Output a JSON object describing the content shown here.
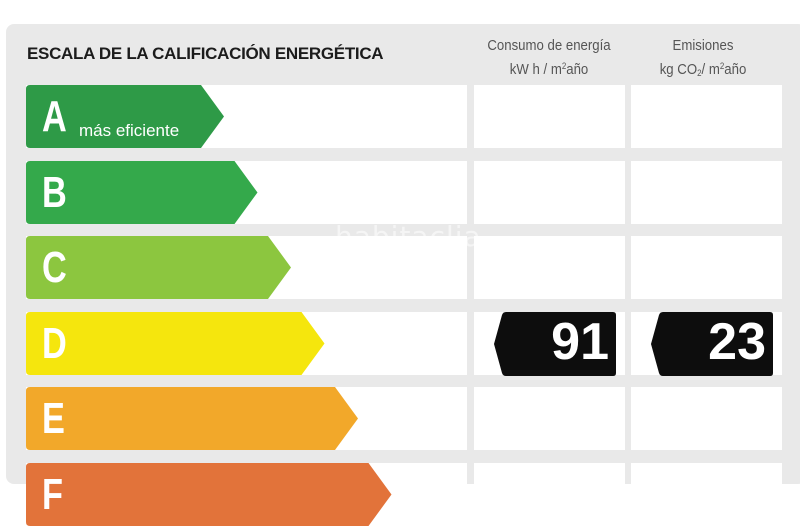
{
  "header": {
    "title": "ESCALA DE LA CALIFICACIÓN ENERGÉTICA",
    "consumption": {
      "line1": "Consumo de energía",
      "line2_prefix": "kW h / m",
      "line2_sup": "2",
      "line2_suffix": "año"
    },
    "emissions": {
      "line1": "Emisiones",
      "line2_prefix": "kg CO",
      "line2_sub": "2",
      "line2_mid": "/ m",
      "line2_sup": "2",
      "line2_suffix": "año"
    }
  },
  "ratings": [
    {
      "letter": "A",
      "sublabel": "más eficiente",
      "color": "#2e9a47"
    },
    {
      "letter": "B",
      "sublabel": "",
      "color": "#34a94b"
    },
    {
      "letter": "C",
      "sublabel": "",
      "color": "#8cc63f"
    },
    {
      "letter": "D",
      "sublabel": "",
      "color": "#f5e60d"
    },
    {
      "letter": "E",
      "sublabel": "",
      "color": "#f2a82a"
    },
    {
      "letter": "F",
      "sublabel": "",
      "color": "#e2733a"
    }
  ],
  "current_rating": {
    "letter": "D",
    "consumption_value": "91",
    "emissions_value": "23"
  },
  "watermark": "habitaclia"
}
